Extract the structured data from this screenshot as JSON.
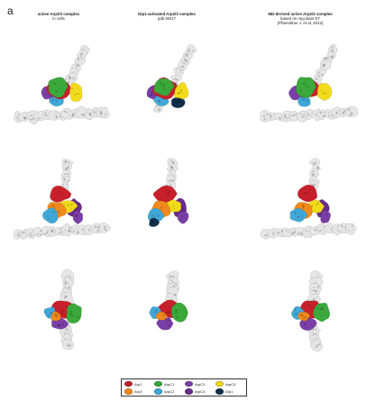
{
  "panel_label": "a",
  "columns": [
    {
      "title": "active Arp2/3 complex",
      "subtitle": "in cells"
    },
    {
      "title": "Dip1-activated Arp2/3 complex",
      "subtitle": "pdb 6W17"
    },
    {
      "title": "MD-derived active Arp2/3 complex",
      "subtitle": "based on neg.stain ET",
      "subtitle2": "(Pfaendtner J. et al, 2012)"
    }
  ],
  "legend": [
    {
      "label": "Arp2",
      "color": "#c8202a"
    },
    {
      "label": "ArpC1",
      "color": "#3aa83a"
    },
    {
      "label": "ArpC3",
      "color": "#7b3fa8"
    },
    {
      "label": "ArpC5",
      "color": "#f2dc1a"
    },
    {
      "label": "Arp3",
      "color": "#f08a1c"
    },
    {
      "label": "ArpC2",
      "color": "#40a8d8"
    },
    {
      "label": "ArpC4",
      "color": "#6a2c8c"
    },
    {
      "label": "Dip1",
      "color": "#0f2f4a"
    }
  ],
  "colors": {
    "actin_gray": "#e6e6e6",
    "actin_outline": "#bdbdbd"
  }
}
